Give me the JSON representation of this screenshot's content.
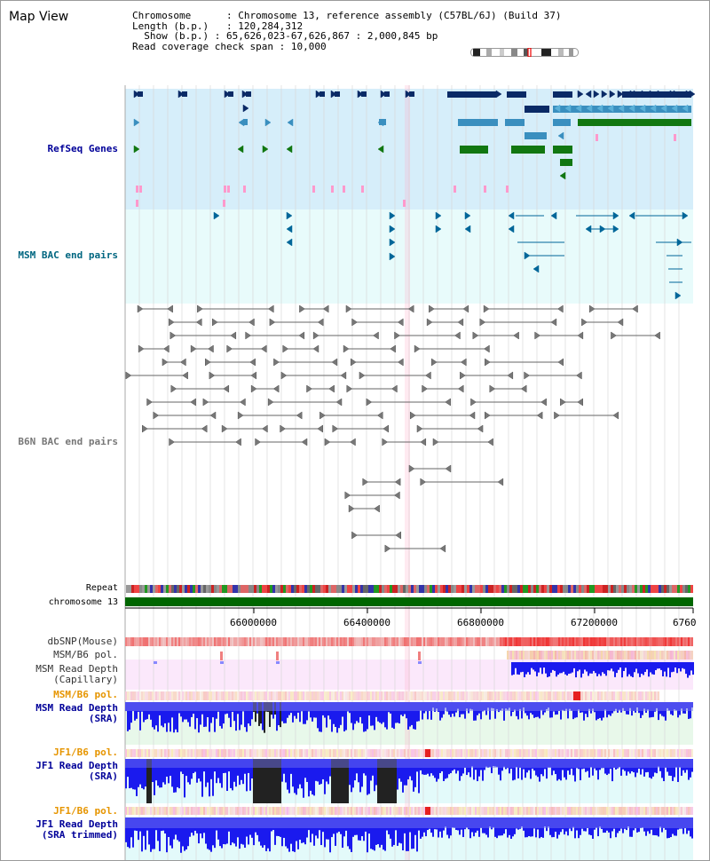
{
  "title": "Map View",
  "info": {
    "chromosome_label": "Chromosome",
    "chromosome_value": "Chromosome 13, reference assembly (C57BL/6J) (Build 37)",
    "length_label": "Length (b.p.)",
    "length_value": "120,284,312",
    "show_label": "Show (b.p.)",
    "show_value": "65,626,023-67,626,867 : 2,000,845 bp",
    "span_label": "Read coverage check span",
    "span_value": "10,000"
  },
  "tracks": {
    "refseq": {
      "label": "RefSeq Genes",
      "color": "#000099",
      "bg": "#d6eefa"
    },
    "msm_bac": {
      "label": "MSM BAC end pairs",
      "color": "#006680",
      "bg": "#e8fbfb"
    },
    "b6n_bac": {
      "label": "B6N BAC end pairs",
      "color": "#777777"
    },
    "repeat": {
      "label": "Repeat"
    },
    "chrom": {
      "label": "chromosome 13",
      "color": "#006600"
    },
    "dbsnp": {
      "label": "dbSNP(Mouse)"
    },
    "msm_pol1": {
      "label": "MSM/B6 pol."
    },
    "msm_depth_cap": {
      "label1": "MSM Read Depth",
      "label2": "(Capillary)"
    },
    "msm_pol2": {
      "label": "MSM/B6 pol.",
      "color": "#e69500"
    },
    "msm_depth_sra": {
      "label1": "MSM Read Depth",
      "label2": "(SRA)",
      "color": "#000099"
    },
    "jf1_pol1": {
      "label": "JF1/B6 pol.",
      "color": "#e69500"
    },
    "jf1_depth": {
      "label1": "JF1 Read Depth",
      "label2": "(SRA)",
      "color": "#000099"
    },
    "jf1_pol2": {
      "label": "JF1/B6 pol.",
      "color": "#e69500"
    },
    "jf1_depth_trim": {
      "label1": "JF1 Read Depth",
      "label2": "(SRA trimmed)",
      "color": "#000099"
    }
  },
  "axis": {
    "ticks": [
      "66000000",
      "66400000",
      "66800000",
      "67200000",
      "6760"
    ]
  },
  "colors": {
    "dark_gene": "#0a2a66",
    "mid_gene": "#3a8fbf",
    "green_gene": "#117711",
    "bac_blue": "#006699",
    "bac_grey": "#777777",
    "depth_blue": "#1a1aee",
    "depth_black": "#222222",
    "snp_pink": "#f7b3b3",
    "snp_red": "#e62020"
  }
}
